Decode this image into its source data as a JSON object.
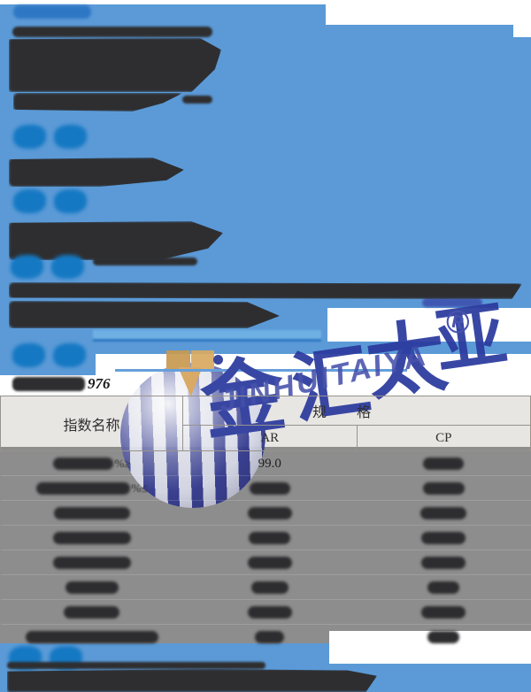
{
  "colors": {
    "highlight_blue": "#5b9ad7",
    "section_heading_blue": "#1478c2",
    "link_underline_blue": "#2d77c0",
    "dark_text": "#2e2e30",
    "table_header_bg": "#e8e6e3",
    "table_body_bg": "#8d8d8d",
    "watermark_indigo": "#2b3a9e",
    "balloon_tan": "#d7a35c"
  },
  "top_nav": {
    "link_label_illegible": true
  },
  "sections": {
    "note": "Five blue two-character section headings and all paragraph text are blurred beyond legibility in the source image; rendered as redaction bars."
  },
  "standard_line": {
    "visible_text": "976"
  },
  "table": {
    "header": {
      "name_col": "指数名称",
      "spec_col": "规格",
      "sub_cols": [
        "AR",
        "CP"
      ]
    },
    "rows": [
      {
        "label_blur_w": 68,
        "label_suffix": "%≥",
        "ar_text": "99.0",
        "cp_blur_w": 46
      },
      {
        "label_blur_w": 106,
        "label_suffix": "%≤",
        "ar_blur_w": 46,
        "cp_blur_w": 47
      },
      {
        "label_blur_w": 86,
        "ar_blur_w": 50,
        "cp_blur_w": 52
      },
      {
        "label_blur_w": 88,
        "ar_blur_w": 47,
        "cp_blur_w": 50
      },
      {
        "label_blur_w": 88,
        "ar_blur_w": 50,
        "cp_blur_w": 50
      },
      {
        "label_blur_w": 60,
        "ar_blur_w": 42,
        "cp_blur_w": 36
      },
      {
        "label_blur_w": 63,
        "ar_blur_w": 50,
        "cp_blur_w": 50
      },
      {
        "label_blur_w": 150,
        "ar_blur_w": 33,
        "cp_blur_w": 36
      }
    ]
  },
  "watermark": {
    "cjk_chars": [
      "金",
      "汇",
      "太",
      "亚"
    ],
    "latin": "JINHUITAIYA",
    "registered": "®"
  }
}
